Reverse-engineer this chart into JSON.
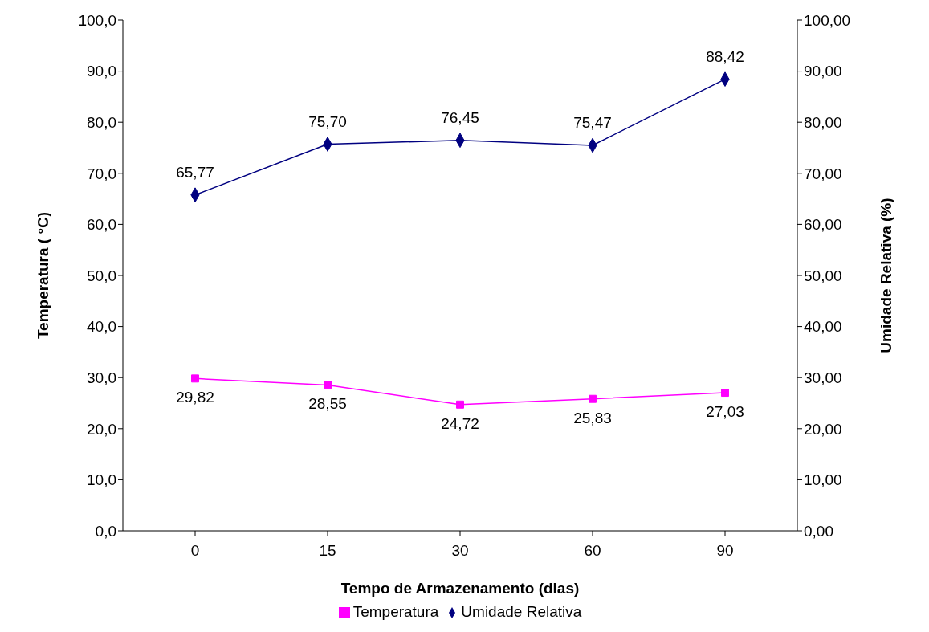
{
  "chart_data": {
    "type": "line",
    "xlabel": "Tempo de Armazenamento (dias)",
    "ylabel": "Temperatura ( °C)",
    "y2label": "Umidade Relativa (%)",
    "categories": [
      "0",
      "15",
      "30",
      "60",
      "90"
    ],
    "series": [
      {
        "name": "Temperatura",
        "color": "#ff00ff",
        "marker": "square",
        "values": [
          29.82,
          28.55,
          24.72,
          25.83,
          27.03
        ],
        "value_labels": [
          "29,82",
          "28,55",
          "24,72",
          "25,83",
          "27,03"
        ]
      },
      {
        "name": "Umidade Relativa",
        "color": "#000080",
        "marker": "diamond",
        "axis": "y2",
        "values": [
          65.77,
          75.7,
          76.45,
          75.47,
          88.42
        ],
        "value_labels": [
          "65,77",
          "75,70",
          "76,45",
          "75,47",
          "88,42"
        ]
      }
    ],
    "ylim": [
      0,
      100
    ],
    "yticks": [
      {
        "value": 0,
        "label": "0,0"
      },
      {
        "value": 10,
        "label": "10,0"
      },
      {
        "value": 20,
        "label": "20,0"
      },
      {
        "value": 30,
        "label": "30,0"
      },
      {
        "value": 40,
        "label": "40,0"
      },
      {
        "value": 50,
        "label": "50,0"
      },
      {
        "value": 60,
        "label": "60,0"
      },
      {
        "value": 70,
        "label": "70,0"
      },
      {
        "value": 80,
        "label": "80,0"
      },
      {
        "value": 90,
        "label": "90,0"
      },
      {
        "value": 100,
        "label": "100,0"
      }
    ],
    "y2lim": [
      0,
      100
    ],
    "y2ticks": [
      {
        "value": 0,
        "label": "0,00"
      },
      {
        "value": 10,
        "label": "10,00"
      },
      {
        "value": 20,
        "label": "20,00"
      },
      {
        "value": 30,
        "label": "30,00"
      },
      {
        "value": 40,
        "label": "40,00"
      },
      {
        "value": 50,
        "label": "50,00"
      },
      {
        "value": 60,
        "label": "60,00"
      },
      {
        "value": 70,
        "label": "70,00"
      },
      {
        "value": 80,
        "label": "80,00"
      },
      {
        "value": 90,
        "label": "90,00"
      },
      {
        "value": 100,
        "label": "100,00"
      }
    ],
    "grid": false,
    "legend": "bottom",
    "line_style": "solid"
  }
}
